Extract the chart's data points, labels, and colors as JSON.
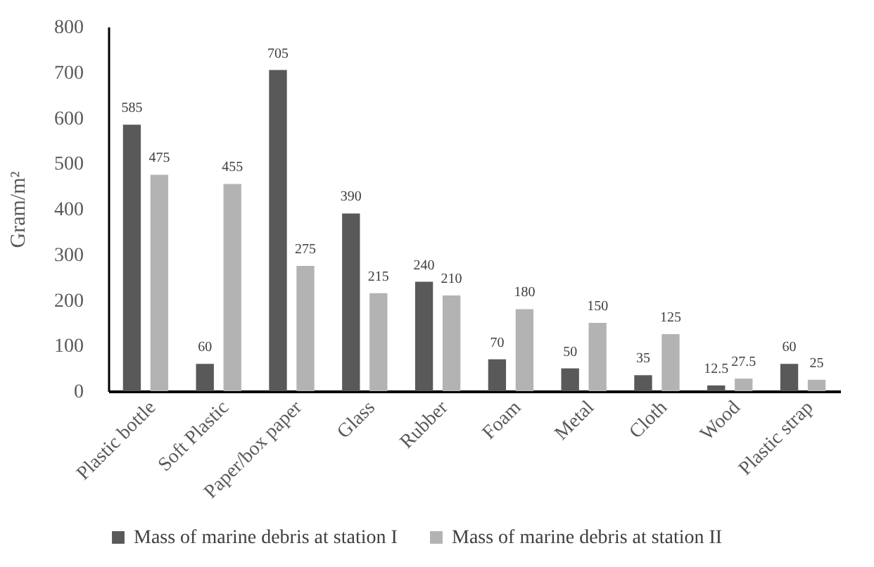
{
  "chart_data": {
    "type": "bar",
    "ylabel": "Gram/m²",
    "categories": [
      "Plastic bottle",
      "Soft Plastic",
      "Paper/box paper",
      "Glass",
      "Rubber",
      "Foam",
      "Metal",
      "Cloth",
      "Wood",
      "Plastic strap"
    ],
    "series": [
      {
        "name": "Mass of marine debris at station I",
        "color": "#595959",
        "values": [
          585,
          60,
          705,
          390,
          240,
          70,
          50,
          35,
          12.5,
          60
        ]
      },
      {
        "name": "Mass of marine debris at station II",
        "color": "#b3b3b3",
        "values": [
          475,
          455,
          275,
          215,
          210,
          180,
          150,
          125,
          27.5,
          25
        ]
      }
    ],
    "ylim": [
      0,
      800
    ],
    "yticks": [
      0,
      100,
      200,
      300,
      400,
      500,
      600,
      700,
      800
    ],
    "grid": false,
    "legend": "bottom",
    "data_labels": true
  }
}
